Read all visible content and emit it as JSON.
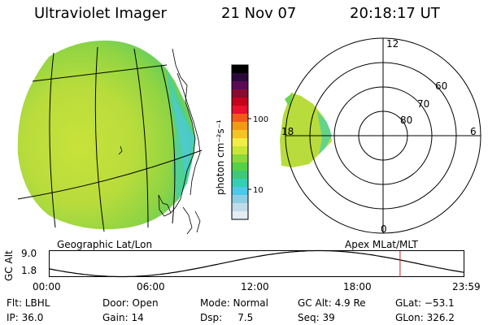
{
  "header": {
    "instrument": "Ultraviolet Imager",
    "date": "21 Nov 07",
    "time": "20:18:17 UT"
  },
  "colorbar": {
    "unit_label": "photon cm⁻²s⁻¹",
    "tick_labels": [
      "100",
      "10"
    ],
    "colors": [
      "#000000",
      "#2a0a3a",
      "#5a0a55",
      "#8a0a30",
      "#c4001a",
      "#e8102a",
      "#f25a1a",
      "#f39a14",
      "#f4c424",
      "#f2ec46",
      "#c8e636",
      "#8ad83a",
      "#55d048",
      "#3cc878",
      "#34cfb4",
      "#4cc8e8",
      "#8ccfe4",
      "#c0dcea",
      "#e4eef2"
    ]
  },
  "geo_panel": {
    "label": "Geographic Lat/Lon"
  },
  "polar_panel": {
    "label": "Apex MLat/MLT",
    "mlt_labels": {
      "top": "12",
      "left": "18",
      "right": "6",
      "bottom": "0"
    },
    "lat_labels": [
      "60",
      "70",
      "80"
    ]
  },
  "altitude_plot": {
    "ylabel": "GC Alt",
    "y_ticks": [
      "9.0",
      "1.8"
    ],
    "x_ticks": [
      "00:00",
      "06:00",
      "12:00",
      "18:00",
      "23:59"
    ],
    "ylim": [
      1.8,
      9.0
    ],
    "marker_time_hours": 20.3,
    "curve_color": "#000000",
    "marker_color": "#cc2222"
  },
  "status": {
    "filter": "Flt: LBHL",
    "door": "Door: Open",
    "mode": "Mode: Normal",
    "gc_alt": "GC Alt: 4.9 Re",
    "glat": "GLat: −53.1",
    "ip": "IP: 36.0",
    "gain": "Gain: 14",
    "dsp": "Dsp:     7.5",
    "seq": "Seq: 39",
    "glon": "GLon: 326.2"
  }
}
